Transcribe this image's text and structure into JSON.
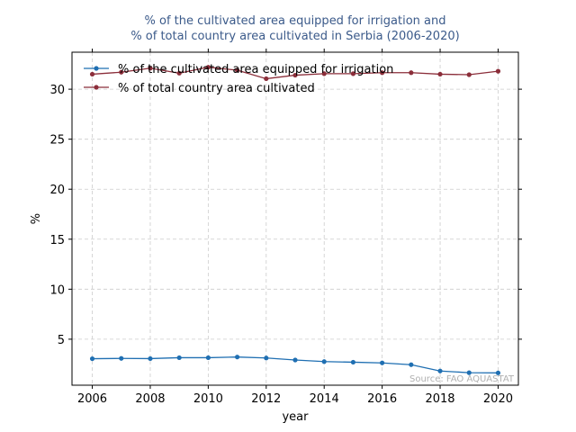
{
  "chart_data": {
    "type": "line",
    "title_line1": "% of the cultivated area equipped for irrigation and",
    "title_line2": "% of total country area cultivated in Serbia (2006-2020)",
    "xlabel": "year",
    "ylabel": "%",
    "xlim": [
      2005.3,
      2020.7
    ],
    "ylim": [
      0.4,
      33.7
    ],
    "xticks": [
      2006,
      2008,
      2010,
      2012,
      2014,
      2016,
      2018,
      2020
    ],
    "yticks": [
      5,
      10,
      15,
      20,
      25,
      30
    ],
    "grid": true,
    "legend_position": "top-left",
    "source": "Source: FAO AQUASTAT",
    "colors": {
      "title": "#3b5a8a",
      "source": "#b0b0b0",
      "grid": "#cccccc"
    },
    "x": [
      2006,
      2007,
      2008,
      2009,
      2010,
      2011,
      2012,
      2013,
      2014,
      2015,
      2016,
      2017,
      2018,
      2019,
      2020
    ],
    "series": [
      {
        "name": "% of the cultivated area equipped for irrigation",
        "color": "#1f6fb2",
        "values": [
          3.05,
          3.08,
          3.06,
          3.15,
          3.15,
          3.22,
          3.12,
          2.92,
          2.76,
          2.7,
          2.63,
          2.45,
          1.82,
          1.65,
          1.63
        ]
      },
      {
        "name": "% of total country area cultivated",
        "color": "#8b2e3a",
        "values": [
          31.5,
          31.7,
          32.1,
          31.6,
          32.2,
          31.9,
          31.05,
          31.4,
          31.55,
          31.55,
          31.65,
          31.65,
          31.5,
          31.45,
          31.8
        ]
      }
    ]
  }
}
